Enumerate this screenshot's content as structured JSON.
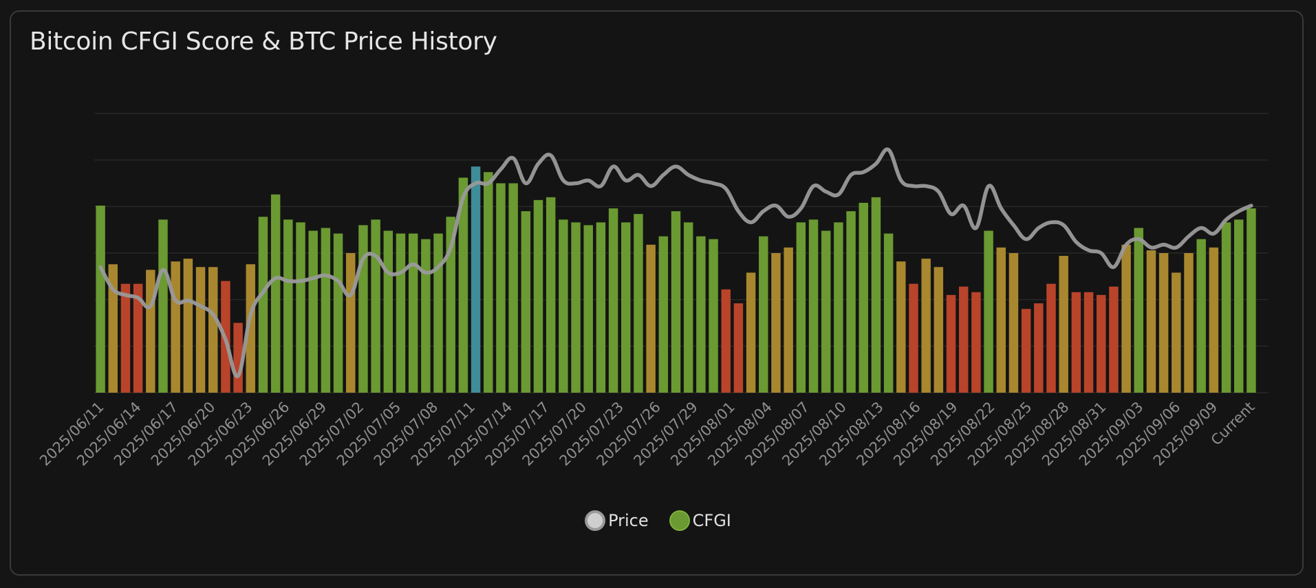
{
  "title": "Bitcoin CFGI Score & BTC Price History",
  "legend": {
    "price_label": "Price",
    "cfgi_label": "CFGI"
  },
  "colors": {
    "background": "#141414",
    "grid": "#2c2c2c",
    "price_line": "#9a9a9a",
    "price_swatch_fill": "#cfcfcf",
    "fear": "#b9442a",
    "neutral": "#a8872f",
    "greed": "#6a9a31",
    "extreme_greed": "#3f8d98"
  },
  "chart_data": {
    "type": "bar",
    "x_tick_labels": [
      "2025/06/11",
      "2025/06/14",
      "2025/06/17",
      "2025/06/20",
      "2025/06/23",
      "2025/06/26",
      "2025/06/29",
      "2025/07/02",
      "2025/07/05",
      "2025/07/08",
      "2025/07/11",
      "2025/07/14",
      "2025/07/17",
      "2025/07/20",
      "2025/07/23",
      "2025/07/26",
      "2025/07/29",
      "2025/08/01",
      "2025/08/04",
      "2025/08/07",
      "2025/08/10",
      "2025/08/13",
      "2025/08/16",
      "2025/08/19",
      "2025/08/22",
      "2025/08/25",
      "2025/08/28",
      "2025/08/31",
      "2025/09/03",
      "2025/09/06",
      "2025/09/09",
      "Current"
    ],
    "grid": true,
    "legend_position": "bottom-center",
    "series": [
      {
        "name": "CFGI",
        "type": "bar",
        "ylim": [
          0,
          100
        ],
        "values": [
          67,
          46,
          39,
          39,
          44,
          62,
          47,
          48,
          45,
          45,
          40,
          25,
          46,
          63,
          71,
          62,
          61,
          58,
          59,
          57,
          50,
          60,
          62,
          58,
          57,
          57,
          55,
          57,
          63,
          77,
          81,
          79,
          75,
          75,
          65,
          69,
          70,
          62,
          61,
          60,
          61,
          66,
          61,
          64,
          53,
          56,
          65,
          61,
          56,
          55,
          37,
          32,
          43,
          56,
          50,
          52,
          61,
          62,
          58,
          61,
          65,
          68,
          70,
          57,
          47,
          39,
          48,
          45,
          35,
          38,
          36,
          58,
          52,
          50,
          30,
          32,
          39,
          49,
          36,
          36,
          35,
          38,
          53,
          59,
          51,
          50,
          43,
          50,
          55,
          52,
          61,
          62,
          66
        ],
        "categories": [
          "fear/neutral/greed classified by value"
        ]
      },
      {
        "name": "Price",
        "type": "line",
        "ylim": [
          0,
          100
        ],
        "values": [
          45,
          37,
          35,
          34,
          31,
          44,
          33,
          33,
          31,
          28,
          19,
          6,
          28,
          36,
          41,
          40,
          40,
          41,
          42,
          40,
          35,
          48,
          49,
          43,
          43,
          46,
          43,
          45,
          52,
          70,
          75,
          75,
          80,
          84,
          75,
          82,
          85,
          76,
          75,
          76,
          74,
          81,
          76,
          78,
          74,
          78,
          81,
          78,
          76,
          75,
          73,
          65,
          61,
          65,
          67,
          63,
          66,
          74,
          72,
          71,
          78,
          79,
          82,
          87,
          76,
          74,
          74,
          72,
          64,
          67,
          59,
          74,
          66,
          60,
          55,
          59,
          61,
          60,
          54,
          51,
          50,
          45,
          53,
          55,
          52,
          53,
          52,
          56,
          59,
          57,
          62,
          65,
          67
        ]
      }
    ]
  }
}
